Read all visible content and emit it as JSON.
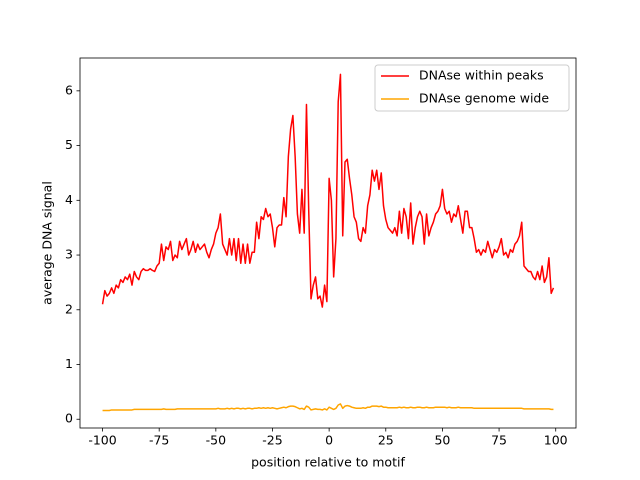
{
  "chart_data": {
    "type": "line",
    "xlabel": "position relative to motif",
    "ylabel": "average DNA signal",
    "x": [
      -100,
      -99,
      -98,
      -97,
      -96,
      -95,
      -94,
      -93,
      -92,
      -91,
      -90,
      -89,
      -88,
      -87,
      -86,
      -85,
      -84,
      -83,
      -82,
      -81,
      -80,
      -79,
      -78,
      -77,
      -76,
      -75,
      -74,
      -73,
      -72,
      -71,
      -70,
      -69,
      -68,
      -67,
      -66,
      -65,
      -64,
      -63,
      -62,
      -61,
      -60,
      -59,
      -58,
      -57,
      -56,
      -55,
      -54,
      -53,
      -52,
      -51,
      -50,
      -49,
      -48,
      -47,
      -46,
      -45,
      -44,
      -43,
      -42,
      -41,
      -40,
      -39,
      -38,
      -37,
      -36,
      -35,
      -34,
      -33,
      -32,
      -31,
      -30,
      -29,
      -28,
      -27,
      -26,
      -25,
      -24,
      -23,
      -22,
      -21,
      -20,
      -19,
      -18,
      -17,
      -16,
      -15,
      -14,
      -13,
      -12,
      -11,
      -10,
      -9,
      -8,
      -7,
      -6,
      -5,
      -4,
      -3,
      -2,
      -1,
      0,
      1,
      2,
      3,
      4,
      5,
      6,
      7,
      8,
      9,
      10,
      11,
      12,
      13,
      14,
      15,
      16,
      17,
      18,
      19,
      20,
      21,
      22,
      23,
      24,
      25,
      26,
      27,
      28,
      29,
      30,
      31,
      32,
      33,
      34,
      35,
      36,
      37,
      38,
      39,
      40,
      41,
      42,
      43,
      44,
      45,
      46,
      47,
      48,
      49,
      50,
      51,
      52,
      53,
      54,
      55,
      56,
      57,
      58,
      59,
      60,
      61,
      62,
      63,
      64,
      65,
      66,
      67,
      68,
      69,
      70,
      71,
      72,
      73,
      74,
      75,
      76,
      77,
      78,
      79,
      80,
      81,
      82,
      83,
      84,
      85,
      86,
      87,
      88,
      89,
      90,
      91,
      92,
      93,
      94,
      95,
      96,
      97,
      98,
      99
    ],
    "series": [
      {
        "name": "DNAse within peaks",
        "color": "#ff0000",
        "values": [
          2.1,
          2.35,
          2.25,
          2.3,
          2.4,
          2.3,
          2.45,
          2.4,
          2.55,
          2.5,
          2.6,
          2.55,
          2.65,
          2.45,
          2.7,
          2.6,
          2.55,
          2.7,
          2.75,
          2.72,
          2.72,
          2.75,
          2.72,
          2.7,
          2.8,
          2.85,
          3.2,
          2.9,
          3.15,
          3.1,
          3.25,
          2.9,
          3.0,
          2.95,
          3.25,
          3.1,
          3.2,
          3.3,
          3.0,
          3.1,
          3.25,
          3.05,
          3.2,
          3.1,
          3.15,
          3.2,
          3.05,
          2.95,
          3.1,
          3.2,
          3.4,
          3.5,
          3.75,
          3.2,
          3.1,
          3.0,
          3.3,
          3.0,
          3.3,
          2.9,
          3.3,
          2.85,
          3.2,
          2.85,
          3.2,
          2.85,
          3.05,
          3.05,
          3.6,
          3.3,
          3.7,
          3.65,
          3.85,
          3.7,
          3.75,
          3.5,
          3.15,
          3.5,
          3.55,
          3.55,
          4.05,
          3.7,
          4.8,
          5.3,
          5.55,
          4.8,
          3.75,
          3.4,
          4.2,
          3.4,
          5.75,
          3.8,
          2.2,
          2.45,
          2.6,
          2.2,
          2.25,
          2.05,
          2.45,
          2.15,
          4.4,
          4.0,
          2.6,
          3.3,
          5.8,
          6.3,
          3.35,
          4.7,
          4.75,
          4.4,
          4.1,
          3.7,
          3.6,
          3.3,
          3.25,
          3.5,
          3.4,
          3.9,
          4.1,
          4.55,
          4.35,
          4.55,
          4.2,
          4.5,
          3.9,
          3.65,
          3.5,
          3.45,
          3.4,
          3.5,
          3.35,
          3.8,
          3.4,
          3.85,
          3.7,
          3.3,
          3.95,
          3.2,
          3.5,
          3.7,
          3.8,
          3.7,
          3.2,
          3.75,
          3.35,
          3.5,
          3.6,
          3.75,
          3.8,
          3.9,
          4.2,
          3.85,
          3.75,
          3.8,
          3.6,
          3.75,
          3.7,
          3.9,
          3.65,
          3.4,
          3.8,
          3.8,
          3.5,
          3.5,
          3.3,
          3.05,
          3.1,
          3.0,
          3.1,
          3.05,
          3.25,
          3.1,
          2.95,
          3.1,
          3.05,
          3.15,
          3.3,
          3.0,
          3.05,
          2.95,
          3.1,
          3.05,
          3.2,
          3.25,
          3.35,
          3.6,
          2.8,
          2.75,
          2.7,
          2.7,
          2.6,
          2.55,
          2.7,
          2.55,
          2.8,
          2.5,
          2.6,
          2.95,
          2.3,
          2.4
        ]
      },
      {
        "name": "DNAse genome wide",
        "color": "#ffa500",
        "values": [
          0.16,
          0.16,
          0.16,
          0.16,
          0.17,
          0.17,
          0.17,
          0.17,
          0.17,
          0.17,
          0.17,
          0.17,
          0.17,
          0.17,
          0.18,
          0.18,
          0.18,
          0.18,
          0.18,
          0.18,
          0.18,
          0.18,
          0.18,
          0.18,
          0.18,
          0.18,
          0.18,
          0.19,
          0.18,
          0.18,
          0.18,
          0.18,
          0.18,
          0.19,
          0.19,
          0.19,
          0.19,
          0.19,
          0.19,
          0.19,
          0.19,
          0.19,
          0.19,
          0.19,
          0.19,
          0.19,
          0.19,
          0.19,
          0.19,
          0.19,
          0.19,
          0.2,
          0.19,
          0.19,
          0.19,
          0.2,
          0.19,
          0.2,
          0.19,
          0.2,
          0.2,
          0.19,
          0.2,
          0.19,
          0.2,
          0.2,
          0.19,
          0.2,
          0.2,
          0.21,
          0.2,
          0.21,
          0.2,
          0.21,
          0.2,
          0.21,
          0.2,
          0.19,
          0.2,
          0.21,
          0.22,
          0.21,
          0.23,
          0.24,
          0.24,
          0.23,
          0.21,
          0.19,
          0.2,
          0.18,
          0.24,
          0.22,
          0.17,
          0.18,
          0.19,
          0.18,
          0.18,
          0.17,
          0.19,
          0.17,
          0.22,
          0.2,
          0.18,
          0.2,
          0.26,
          0.28,
          0.2,
          0.24,
          0.25,
          0.24,
          0.22,
          0.21,
          0.2,
          0.2,
          0.2,
          0.21,
          0.2,
          0.22,
          0.22,
          0.24,
          0.24,
          0.24,
          0.23,
          0.24,
          0.22,
          0.22,
          0.21,
          0.21,
          0.21,
          0.21,
          0.21,
          0.22,
          0.21,
          0.22,
          0.21,
          0.21,
          0.22,
          0.21,
          0.21,
          0.22,
          0.22,
          0.21,
          0.21,
          0.22,
          0.21,
          0.21,
          0.21,
          0.22,
          0.22,
          0.22,
          0.22,
          0.22,
          0.21,
          0.22,
          0.21,
          0.21,
          0.21,
          0.22,
          0.21,
          0.21,
          0.21,
          0.21,
          0.21,
          0.21,
          0.2,
          0.2,
          0.2,
          0.2,
          0.2,
          0.2,
          0.2,
          0.2,
          0.2,
          0.2,
          0.2,
          0.2,
          0.2,
          0.2,
          0.2,
          0.2,
          0.2,
          0.2,
          0.2,
          0.2,
          0.2,
          0.2,
          0.19,
          0.19,
          0.19,
          0.19,
          0.19,
          0.19,
          0.19,
          0.19,
          0.19,
          0.19,
          0.19,
          0.19,
          0.18,
          0.18
        ]
      }
    ],
    "xlim": [
      -109.95,
      108.95
    ],
    "ylim": [
      -0.16,
      6.6
    ],
    "xticks": [
      -100,
      -75,
      -50,
      -25,
      0,
      25,
      50,
      75,
      100
    ],
    "yticks": [
      0,
      1,
      2,
      3,
      4,
      5,
      6
    ],
    "legend": "upper right"
  }
}
